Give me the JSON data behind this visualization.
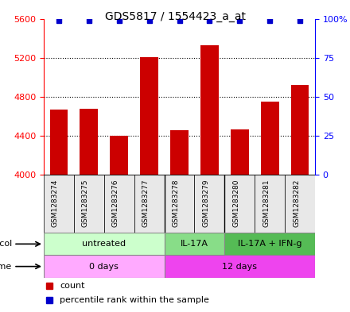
{
  "title": "GDS5817 / 1554423_a_at",
  "samples": [
    "GSM1283274",
    "GSM1283275",
    "GSM1283276",
    "GSM1283277",
    "GSM1283278",
    "GSM1283279",
    "GSM1283280",
    "GSM1283281",
    "GSM1283282"
  ],
  "counts": [
    4670,
    4680,
    4400,
    5210,
    4460,
    5330,
    4470,
    4750,
    4920
  ],
  "percentiles": [
    99,
    99,
    99,
    99,
    99,
    99,
    99,
    99,
    99
  ],
  "ylim_left": [
    4000,
    5600
  ],
  "ylim_right": [
    0,
    100
  ],
  "yticks_left": [
    4000,
    4400,
    4800,
    5200,
    5600
  ],
  "yticks_right": [
    0,
    25,
    50,
    75,
    100
  ],
  "bar_color": "#CC0000",
  "dot_color": "#0000CC",
  "bar_width": 0.6,
  "protocol_groups": [
    {
      "label": "untreated",
      "start": 0,
      "end": 4,
      "color": "#ccffcc"
    },
    {
      "label": "IL-17A",
      "start": 4,
      "end": 6,
      "color": "#88dd88"
    },
    {
      "label": "IL-17A + IFN-g",
      "start": 6,
      "end": 9,
      "color": "#55bb55"
    }
  ],
  "time_groups": [
    {
      "label": "0 days",
      "start": 0,
      "end": 4,
      "color": "#ffaaff"
    },
    {
      "label": "12 days",
      "start": 4,
      "end": 9,
      "color": "#ee44ee"
    }
  ],
  "legend_count_color": "#CC0000",
  "legend_pct_color": "#0000CC",
  "background_color": "#e8e8e8"
}
